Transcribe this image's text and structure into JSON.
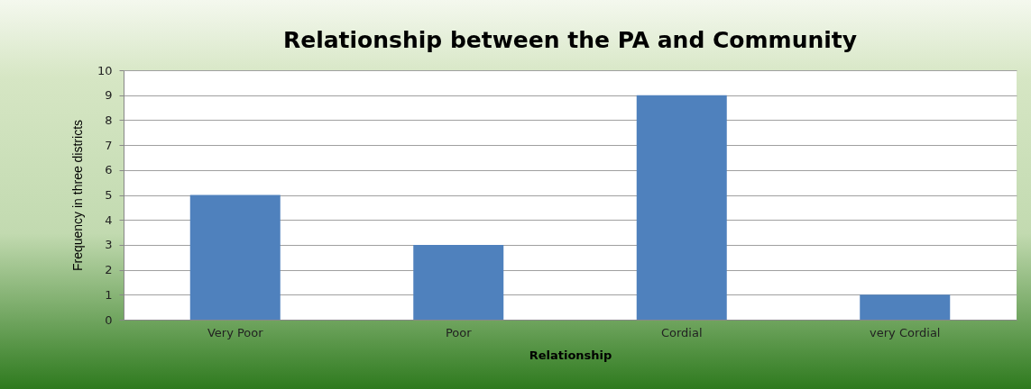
{
  "chart_data": {
    "type": "bar",
    "title": "Relationship between the PA and Community",
    "xlabel": "Relationship",
    "ylabel": "Frequency in three districts",
    "categories": [
      "Very Poor",
      "Poor",
      "Cordial",
      "very Cordial"
    ],
    "values": [
      5,
      3,
      9,
      1
    ],
    "color": "#4f81bd",
    "ylim": [
      0,
      10
    ],
    "yticks": [
      0,
      1,
      2,
      3,
      4,
      5,
      6,
      7,
      8,
      9,
      10
    ],
    "grid": "y"
  }
}
